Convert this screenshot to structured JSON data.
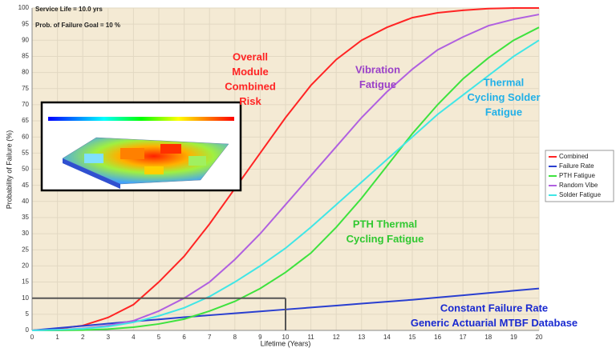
{
  "chart_data": {
    "type": "line",
    "xlabel": "Lifetime (Years)",
    "ylabel": "Probability of Failure (%)",
    "info": [
      "Service Life = 10.0 yrs",
      "Prob. of Failure Goal = 10 %"
    ],
    "x": [
      0,
      1,
      2,
      3,
      4,
      5,
      6,
      7,
      8,
      9,
      10,
      11,
      12,
      13,
      14,
      15,
      16,
      17,
      18,
      19,
      20
    ],
    "series": [
      {
        "name": "Combined",
        "color": "#ff2424",
        "values": [
          0,
          0.5,
          1.5,
          4,
          8,
          15,
          23,
          33,
          44,
          55,
          66,
          76,
          84,
          90,
          94,
          97,
          98.5,
          99.3,
          99.8,
          100,
          100
        ]
      },
      {
        "name": "Failure Rate",
        "color": "#2a3fd0",
        "values": [
          0,
          0.7,
          1.4,
          2.1,
          2.8,
          3.4,
          4.1,
          4.7,
          5.3,
          5.9,
          6.5,
          7.1,
          7.7,
          8.3,
          8.9,
          9.5,
          10.2,
          10.9,
          11.6,
          12.3,
          13
        ]
      },
      {
        "name": "PTH Fatigue",
        "color": "#3ee23e",
        "values": [
          0,
          0,
          0.1,
          0.4,
          1,
          2,
          3.5,
          6,
          9,
          13,
          18,
          24,
          32,
          41,
          51,
          61,
          70,
          78,
          84.5,
          90,
          94
        ]
      },
      {
        "name": "Random Vibe",
        "color": "#b060e0",
        "values": [
          0,
          0.2,
          0.6,
          1.5,
          3,
          6,
          10,
          15,
          22,
          30,
          39,
          48,
          57,
          66,
          74,
          81,
          87,
          91,
          94.5,
          96.5,
          98
        ]
      },
      {
        "name": "Solder Fatigue",
        "color": "#40e6e6",
        "values": [
          0,
          0.2,
          0.5,
          1.2,
          2.5,
          4.5,
          7,
          10.5,
          15,
          20,
          25.5,
          32,
          39,
          46,
          53,
          60,
          67,
          73,
          79,
          85,
          90
        ]
      }
    ],
    "reference": {
      "x": 10,
      "y": 10
    },
    "annotations": [
      {
        "lines": [
          "Overall",
          "Module",
          "Combined",
          "Risk"
        ],
        "color": "#ff2424"
      },
      {
        "lines": [
          "Vibration",
          "Fatigue"
        ],
        "color": "#9a40c8"
      },
      {
        "lines": [
          "Thermal",
          "Cycling Solder",
          "Fatigue"
        ],
        "color": "#20b0e8"
      },
      {
        "lines": [
          "PTH Thermal",
          "Cycling Fatigue"
        ],
        "color": "#30c830"
      },
      {
        "lines": [
          "Constant Failure Rate",
          "Generic Actuarial MTBF Database"
        ],
        "color": "#1a2ad0"
      }
    ],
    "xlim": [
      0,
      20
    ],
    "ylim": [
      0,
      100
    ],
    "xticks": [
      0,
      1,
      2,
      3,
      4,
      5,
      6,
      7,
      8,
      9,
      10,
      11,
      12,
      13,
      14,
      15,
      16,
      17,
      18,
      19,
      20
    ],
    "yticks": [
      0,
      5,
      10,
      15,
      20,
      25,
      30,
      35,
      40,
      45,
      50,
      55,
      60,
      65,
      70,
      75,
      80,
      85,
      90,
      95,
      100
    ],
    "grid": true
  }
}
